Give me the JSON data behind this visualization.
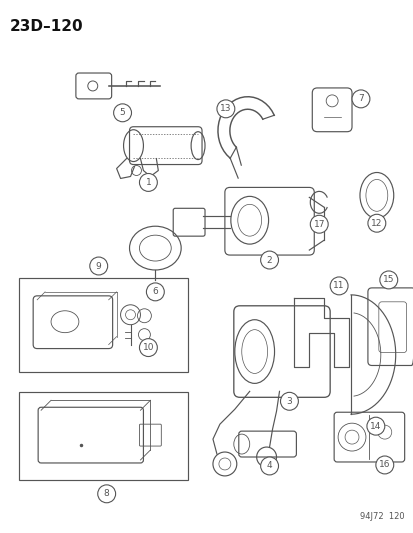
{
  "title": "23D–120",
  "footer": "94J72  120",
  "bg_color": "#ffffff",
  "gray": "#555555",
  "lw": 0.85,
  "fig_w": 4.14,
  "fig_h": 5.33,
  "dpi": 100
}
